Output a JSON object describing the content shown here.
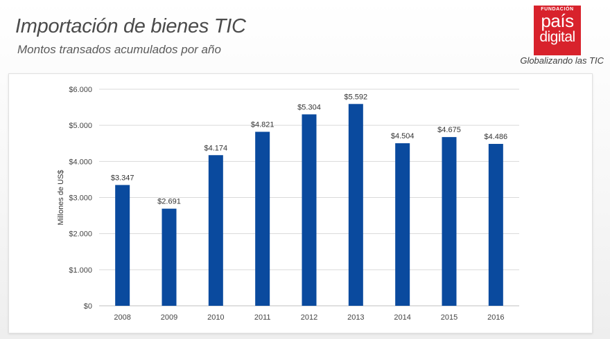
{
  "header": {
    "title": "Importación de bienes TIC",
    "subtitle": "Montos transados acumulados por año"
  },
  "logo": {
    "small": "FUNDACIÓN",
    "main": "país",
    "sub": "digital",
    "tagline": "Globalizando las TIC",
    "color": "#d8222c"
  },
  "chart_data": {
    "type": "bar",
    "categories": [
      "2008",
      "2009",
      "2010",
      "2011",
      "2012",
      "2013",
      "2014",
      "2015",
      "2016"
    ],
    "values": [
      3347,
      2691,
      4174,
      4821,
      5304,
      5592,
      4504,
      4675,
      4486
    ],
    "data_labels": [
      "$3.347",
      "$2.691",
      "$4.174",
      "$4.821",
      "$5.304",
      "$5.592",
      "$4.504",
      "$4.675",
      "$4.486"
    ],
    "title": "",
    "xlabel": "",
    "ylabel": "Millones de US$",
    "ylim": [
      0,
      6000
    ],
    "yticks": [
      0,
      1000,
      2000,
      3000,
      4000,
      5000,
      6000
    ],
    "ytick_labels": [
      "$0",
      "$1.000",
      "$2.000",
      "$3.000",
      "$4.000",
      "$5.000",
      "$6.000"
    ],
    "grid": true,
    "legend": "none",
    "bar_color": "#0a4a9e",
    "grid_color": "#d9d9d9"
  }
}
